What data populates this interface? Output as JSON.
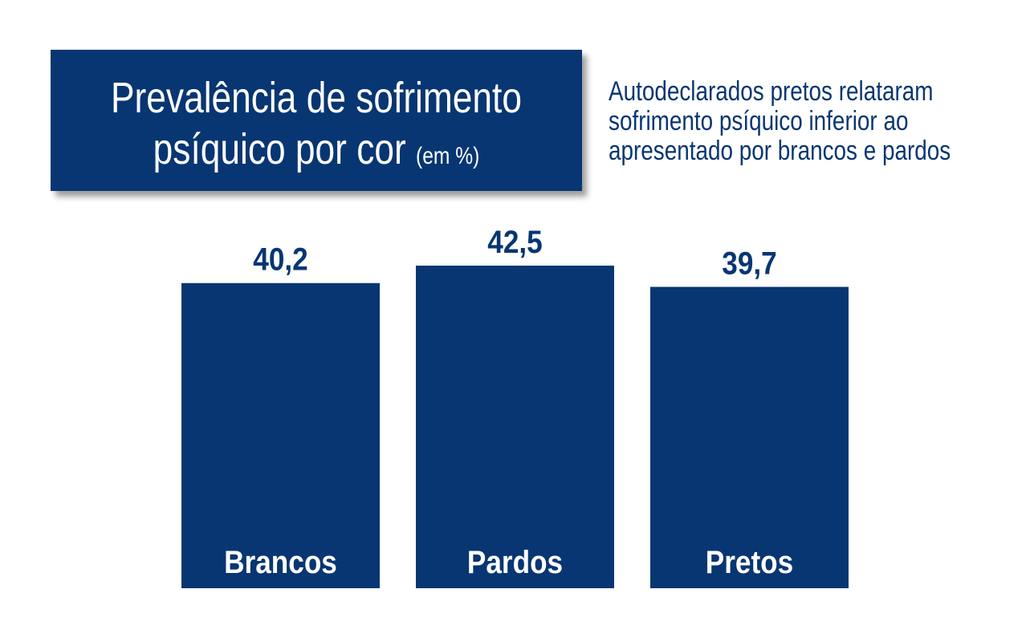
{
  "header": {
    "title_line1": "Prevalência de sofrimento",
    "title_line2": "psíquico por cor",
    "title_unit": "(em %)"
  },
  "note": {
    "lines": [
      "Autodeclarados pretos relataram",
      "sofrimento psíquico inferior ao",
      "apresentado por brancos e pardos"
    ]
  },
  "colors": {
    "bar": "#083672",
    "text": "#083672",
    "bar_label": "#ffffff"
  },
  "chart_data": {
    "type": "bar",
    "title": "Prevalência de sofrimento psíquico por cor (em %)",
    "categories": [
      "Brancos",
      "Pardos",
      "Pretos"
    ],
    "values": [
      40.2,
      42.5,
      39.7
    ],
    "value_labels": [
      "40,2",
      "42,5",
      "39,7"
    ],
    "xlabel": "",
    "ylabel": "",
    "grid": false,
    "legend": "none"
  }
}
